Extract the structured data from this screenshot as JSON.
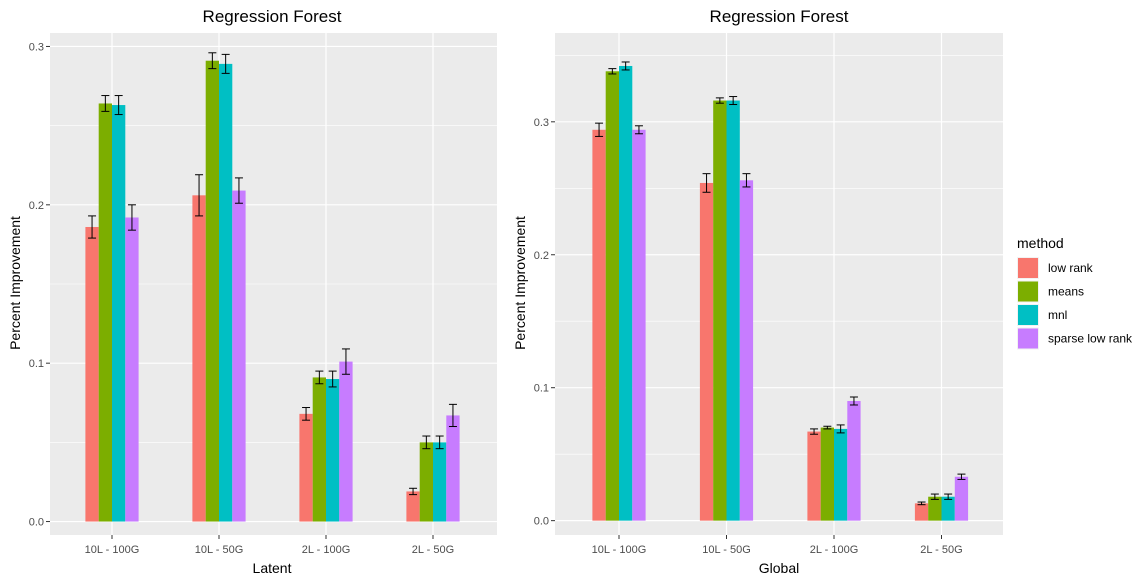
{
  "chart_data": [
    {
      "type": "bar",
      "title": "Regression Forest",
      "xlabel": "Latent",
      "ylabel": "Percent Improvement",
      "ylim": [
        -0.0085,
        0.3085
      ],
      "yticks": [
        "0.0",
        "0.1",
        "0.2",
        "0.3"
      ],
      "categories": [
        "10L - 100G",
        "10L - 50G",
        "2L - 100G",
        "2L - 50G"
      ],
      "series": [
        {
          "name": "low rank",
          "values": [
            0.186,
            0.206,
            0.068,
            0.019
          ],
          "errors": [
            0.007,
            0.013,
            0.004,
            0.002
          ]
        },
        {
          "name": "means",
          "values": [
            0.264,
            0.291,
            0.091,
            0.05
          ],
          "errors": [
            0.005,
            0.005,
            0.004,
            0.004
          ]
        },
        {
          "name": "mnl",
          "values": [
            0.263,
            0.289,
            0.09,
            0.05
          ],
          "errors": [
            0.006,
            0.006,
            0.005,
            0.004
          ]
        },
        {
          "name": "sparse low rank",
          "values": [
            0.192,
            0.209,
            0.101,
            0.067
          ],
          "errors": [
            0.008,
            0.008,
            0.008,
            0.007
          ]
        }
      ],
      "grid": true
    },
    {
      "type": "bar",
      "title": "Regression Forest",
      "xlabel": "Global",
      "ylabel": "Percent Improvement",
      "ylim": [
        -0.0108,
        0.3668
      ],
      "yticks": [
        "0.0",
        "0.1",
        "0.2",
        "0.3"
      ],
      "categories": [
        "10L - 100G",
        "10L - 50G",
        "2L - 100G",
        "2L - 50G"
      ],
      "series": [
        {
          "name": "low rank",
          "values": [
            0.294,
            0.254,
            0.067,
            0.013
          ],
          "errors": [
            0.005,
            0.007,
            0.002,
            0.001
          ]
        },
        {
          "name": "means",
          "values": [
            0.338,
            0.316,
            0.07,
            0.018
          ],
          "errors": [
            0.002,
            0.002,
            0.001,
            0.002
          ]
        },
        {
          "name": "mnl",
          "values": [
            0.342,
            0.316,
            0.069,
            0.018
          ],
          "errors": [
            0.003,
            0.003,
            0.003,
            0.002
          ]
        },
        {
          "name": "sparse low rank",
          "values": [
            0.294,
            0.256,
            0.09,
            0.033
          ],
          "errors": [
            0.003,
            0.005,
            0.003,
            0.002
          ]
        }
      ],
      "grid": true
    }
  ],
  "legend": {
    "title": "method",
    "placement": "right",
    "items": [
      {
        "label": "low rank",
        "color": "#F8766D"
      },
      {
        "label": "means",
        "color": "#7CAE00"
      },
      {
        "label": "mnl",
        "color": "#00BFC4"
      },
      {
        "label": "sparse low rank",
        "color": "#C77CFF"
      }
    ]
  },
  "colors": {
    "panel_background": "#EBEBEB",
    "grid_major": "#FFFFFF",
    "error_bar": "#000000"
  }
}
